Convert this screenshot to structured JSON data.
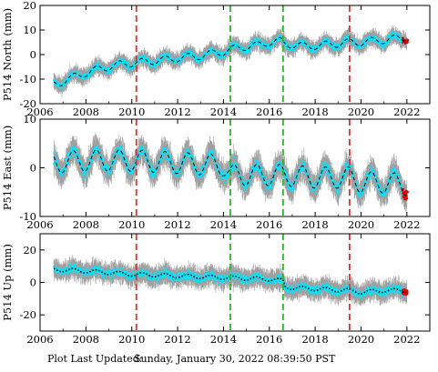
{
  "footer": {
    "label": "Plot Last Updated:",
    "value": "Sunday, January 30, 2022 08:39:50 PST"
  },
  "chart_data": [
    {
      "type": "scatter",
      "ylabel": "P514 North (mm)",
      "xlim": [
        2006,
        2023
      ],
      "ylim": [
        -20,
        20
      ],
      "yticks": [
        -20,
        -10,
        0,
        10,
        20
      ],
      "xticks": [
        2006,
        2008,
        2010,
        2012,
        2014,
        2016,
        2018,
        2020,
        2022
      ],
      "grid": false,
      "event_lines": [
        {
          "x": 2010.2,
          "color": "#e03030",
          "style": "dashed"
        },
        {
          "x": 2014.3,
          "color": "#30b030",
          "style": "dashed"
        },
        {
          "x": 2016.6,
          "color": "#30b030",
          "style": "dashed"
        },
        {
          "x": 2019.5,
          "color": "#e03030",
          "style": "dashed"
        }
      ],
      "model_curve": [
        [
          2006.6,
          -12
        ],
        [
          2007.0,
          -11
        ],
        [
          2007.5,
          -9
        ],
        [
          2008.0,
          -7.5
        ],
        [
          2008.5,
          -6
        ],
        [
          2009.0,
          -5
        ],
        [
          2009.5,
          -4
        ],
        [
          2010.0,
          -3.5
        ],
        [
          2010.5,
          -3
        ],
        [
          2011.0,
          -2.5
        ],
        [
          2011.5,
          -2
        ],
        [
          2012.0,
          -1.5
        ],
        [
          2012.5,
          -1
        ],
        [
          2013.0,
          -0.5
        ],
        [
          2013.5,
          0.5
        ],
        [
          2014.0,
          1
        ],
        [
          2014.3,
          2
        ],
        [
          2014.8,
          3
        ],
        [
          2015.2,
          3.5
        ],
        [
          2015.6,
          4
        ],
        [
          2016.0,
          5
        ],
        [
          2016.5,
          5.5
        ],
        [
          2016.6,
          4.5
        ],
        [
          2017.0,
          4
        ],
        [
          2017.5,
          3.5
        ],
        [
          2018.0,
          3.5
        ],
        [
          2018.5,
          4
        ],
        [
          2019.0,
          4.5
        ],
        [
          2019.5,
          5
        ],
        [
          2020.0,
          5
        ],
        [
          2020.5,
          5.5
        ],
        [
          2021.0,
          6
        ],
        [
          2021.5,
          6.5
        ],
        [
          2022.0,
          7
        ]
      ],
      "seasonal_amplitude": 1.5,
      "noise": 2.4
    },
    {
      "type": "scatter",
      "ylabel": "P514 East (mm)",
      "xlim": [
        2006,
        2023
      ],
      "ylim": [
        -10,
        10
      ],
      "yticks": [
        -10,
        0,
        10
      ],
      "xticks": [
        2006,
        2008,
        2010,
        2012,
        2014,
        2016,
        2018,
        2020,
        2022
      ],
      "grid": false,
      "event_lines": [
        {
          "x": 2010.2,
          "color": "#e03030",
          "style": "dashed"
        },
        {
          "x": 2014.3,
          "color": "#30b030",
          "style": "dashed"
        },
        {
          "x": 2016.6,
          "color": "#30b030",
          "style": "dashed"
        },
        {
          "x": 2019.5,
          "color": "#e03030",
          "style": "dashed"
        }
      ],
      "model_curve": [
        [
          2006.6,
          1
        ],
        [
          2008.0,
          1.5
        ],
        [
          2010.0,
          1.5
        ],
        [
          2012.0,
          1
        ],
        [
          2014.0,
          0.5
        ],
        [
          2014.3,
          -1.5
        ],
        [
          2016.0,
          -1.5
        ],
        [
          2016.6,
          -1.5
        ],
        [
          2018.0,
          -2
        ],
        [
          2019.5,
          -2
        ],
        [
          2020.0,
          -3
        ],
        [
          2021.0,
          -3
        ],
        [
          2022.0,
          -3.5
        ]
      ],
      "seasonal_amplitude": 2.2,
      "noise": 2.0
    },
    {
      "type": "scatter",
      "ylabel": "P514 Up (mm)",
      "xlim": [
        2006,
        2023
      ],
      "ylim": [
        -30,
        30
      ],
      "yticks": [
        -20,
        0,
        20
      ],
      "xticks": [
        2006,
        2008,
        2010,
        2012,
        2014,
        2016,
        2018,
        2020,
        2022
      ],
      "grid": false,
      "event_lines": [
        {
          "x": 2010.2,
          "color": "#e03030",
          "style": "dashed"
        },
        {
          "x": 2014.3,
          "color": "#30b030",
          "style": "dashed"
        },
        {
          "x": 2016.6,
          "color": "#30b030",
          "style": "dashed"
        },
        {
          "x": 2019.5,
          "color": "#e03030",
          "style": "dashed"
        }
      ],
      "model_curve": [
        [
          2006.6,
          8
        ],
        [
          2008.0,
          7
        ],
        [
          2010.0,
          5
        ],
        [
          2012.0,
          4
        ],
        [
          2014.0,
          3
        ],
        [
          2016.0,
          2
        ],
        [
          2016.6,
          1
        ],
        [
          2016.7,
          -3
        ],
        [
          2018.0,
          -4
        ],
        [
          2019.5,
          -5
        ],
        [
          2020.0,
          -6
        ],
        [
          2021.0,
          -5
        ],
        [
          2022.0,
          -5
        ]
      ],
      "seasonal_amplitude": 1.2,
      "noise": 4.5
    }
  ],
  "colors": {
    "data_points": "#00e5ff",
    "error_bars": "#a0a0a0",
    "model_line": "#000000",
    "recent_points": "#e00000",
    "frame": "#000000"
  }
}
